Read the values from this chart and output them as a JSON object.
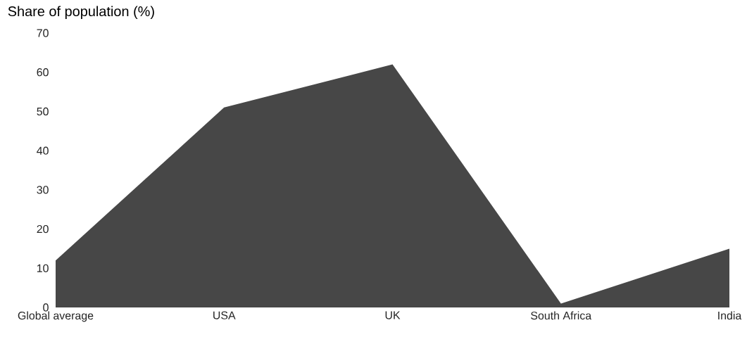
{
  "chart_data": {
    "type": "area",
    "ylabel": "Share of population (%)",
    "categories": [
      "Global average",
      "USA",
      "UK",
      "South Africa",
      "India"
    ],
    "values": [
      12,
      51,
      62,
      1,
      15
    ],
    "color": "#474747",
    "ylim": [
      0,
      70
    ],
    "yticks": [
      0,
      10,
      20,
      30,
      40,
      50,
      60,
      70
    ]
  }
}
